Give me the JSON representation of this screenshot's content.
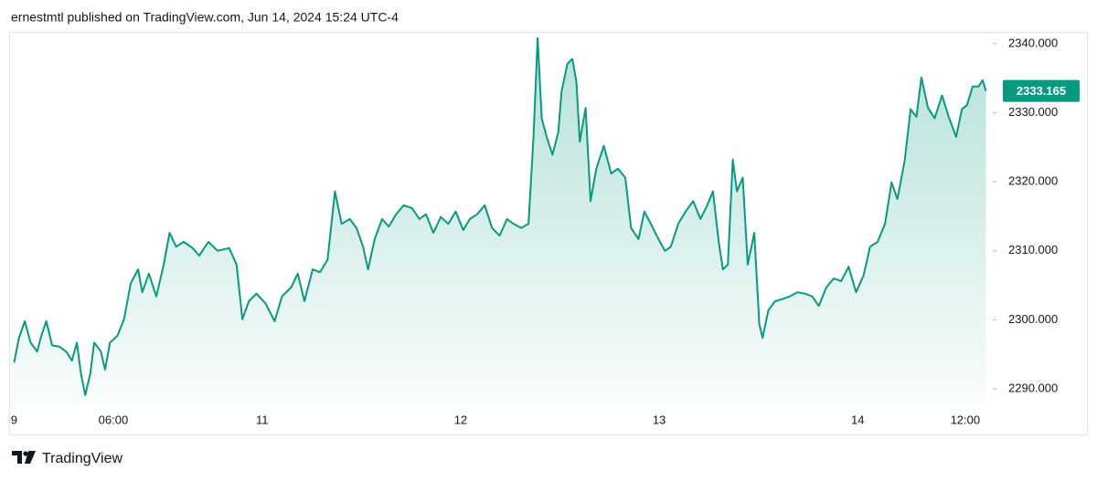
{
  "header": "ernestmtl published on TradingView.com, Jun 14, 2024 15:24 UTC-4",
  "brand": "TradingView",
  "chart_data": {
    "type": "area",
    "color": "#089981",
    "x": [
      18.0,
      18.6,
      19.3,
      20.0,
      20.8,
      21.3,
      21.9,
      22.6,
      23.5,
      24.3,
      25.0,
      25.6,
      26.1,
      26.6,
      27.2,
      27.7,
      28.5,
      29.0,
      29.6,
      30.5,
      31.3,
      32.1,
      33.0,
      33.5,
      34.3,
      35.2,
      36.1,
      36.8,
      37.6,
      38.5,
      39.6,
      40.4,
      41.5,
      42.6,
      44.0,
      44.9,
      45.6,
      46.4,
      47.3,
      48.4,
      49.5,
      50.4,
      51.5,
      52.3,
      53.1,
      54.1,
      55.0,
      55.9,
      56.8,
      57.6,
      58.6,
      59.4,
      60.2,
      60.8,
      61.6,
      62.5,
      63.3,
      64.2,
      65.1,
      66.1,
      67.0,
      67.8,
      68.7,
      69.6,
      70.5,
      71.4,
      72.3,
      73.1,
      74.0,
      74.9,
      75.8,
      76.7,
      77.6,
      78.4,
      79.3,
      80.2,
      80.8,
      81.3,
      81.8,
      82.4,
      83.1,
      83.8,
      84.2,
      84.9,
      85.5,
      86.0,
      86.4,
      87.1,
      87.7,
      88.4,
      89.3,
      90.2,
      91.0,
      91.9,
      92.6,
      93.5,
      94.2,
      95.0,
      95.9,
      96.7,
      97.4,
      98.3,
      99.2,
      100.1,
      101.0,
      101.8,
      102.5,
      103.2,
      103.7,
      104.3,
      104.9,
      105.4,
      106.1,
      106.7,
      107.5,
      108.1,
      108.5,
      109.2,
      110.0,
      110.9,
      111.8,
      112.7,
      113.6,
      114.5,
      115.3,
      116.2,
      117.1,
      118.0,
      118.9,
      119.8,
      120.7,
      121.5,
      122.4,
      123.3,
      124.1,
      124.8,
      125.7,
      126.4,
      127.1,
      127.7,
      128.5,
      129.3,
      130.2,
      131.0,
      131.9,
      132.6,
      133.2,
      133.9,
      134.6,
      135.1,
      135.5
    ],
    "values": [
      2293.8,
      2297.4,
      2299.8,
      2296.7,
      2295.4,
      2297.7,
      2299.8,
      2296.3,
      2296.1,
      2295.4,
      2294.1,
      2296.7,
      2292.1,
      2289.1,
      2292.1,
      2296.7,
      2295.4,
      2292.8,
      2296.7,
      2297.7,
      2300.1,
      2305.3,
      2307.3,
      2304.0,
      2306.7,
      2303.4,
      2308.0,
      2312.6,
      2310.6,
      2311.3,
      2310.4,
      2309.3,
      2311.3,
      2310.0,
      2310.4,
      2308.0,
      2300.1,
      2302.7,
      2303.8,
      2302.4,
      2299.8,
      2303.4,
      2304.7,
      2306.7,
      2302.7,
      2307.3,
      2306.9,
      2308.7,
      2318.6,
      2313.9,
      2314.6,
      2313.3,
      2310.6,
      2307.3,
      2311.7,
      2314.6,
      2313.5,
      2315.3,
      2316.6,
      2316.2,
      2314.6,
      2315.3,
      2312.6,
      2314.9,
      2313.9,
      2315.7,
      2313.0,
      2314.6,
      2315.3,
      2316.6,
      2313.3,
      2312.2,
      2314.6,
      2313.9,
      2313.3,
      2313.9,
      2326.5,
      2340.8,
      2329.2,
      2326.5,
      2323.9,
      2327.2,
      2333.1,
      2337.1,
      2337.8,
      2334.4,
      2325.8,
      2330.7,
      2317.2,
      2321.9,
      2325.2,
      2321.2,
      2321.9,
      2320.6,
      2313.3,
      2311.7,
      2315.7,
      2313.9,
      2311.7,
      2310.0,
      2310.6,
      2313.9,
      2315.7,
      2317.2,
      2314.6,
      2316.6,
      2318.6,
      2311.3,
      2307.3,
      2308.0,
      2323.2,
      2318.6,
      2320.6,
      2308.0,
      2312.6,
      2299.4,
      2297.4,
      2301.4,
      2302.7,
      2303.0,
      2303.4,
      2304.0,
      2303.8,
      2303.4,
      2302.0,
      2304.7,
      2306.0,
      2305.6,
      2307.7,
      2304.0,
      2306.4,
      2310.6,
      2311.3,
      2313.9,
      2319.9,
      2317.5,
      2323.2,
      2330.5,
      2329.4,
      2335.1,
      2330.7,
      2329.2,
      2332.5,
      2329.4,
      2326.5,
      2330.5,
      2331.1,
      2333.8,
      2333.8,
      2334.7,
      2333.165
    ],
    "xlim": [
      16.3,
      136.0
    ],
    "xticks": [
      {
        "value": 18,
        "label": "9"
      },
      {
        "value": 30,
        "label": "06:00"
      },
      {
        "value": 48,
        "label": "11"
      },
      {
        "value": 72,
        "label": "12"
      },
      {
        "value": 96,
        "label": "13"
      },
      {
        "value": 120,
        "label": "14"
      },
      {
        "value": 133,
        "label": "12:00"
      }
    ],
    "ylim": [
      2287.5,
      2341.7
    ],
    "yticks": [
      {
        "value": 2290,
        "label": "2290.000"
      },
      {
        "value": 2300,
        "label": "2300.000"
      },
      {
        "value": 2310,
        "label": "2310.000"
      },
      {
        "value": 2320,
        "label": "2320.000"
      },
      {
        "value": 2330,
        "label": "2330.000"
      },
      {
        "value": 2340,
        "label": "2340.000"
      }
    ],
    "grid": false
  }
}
